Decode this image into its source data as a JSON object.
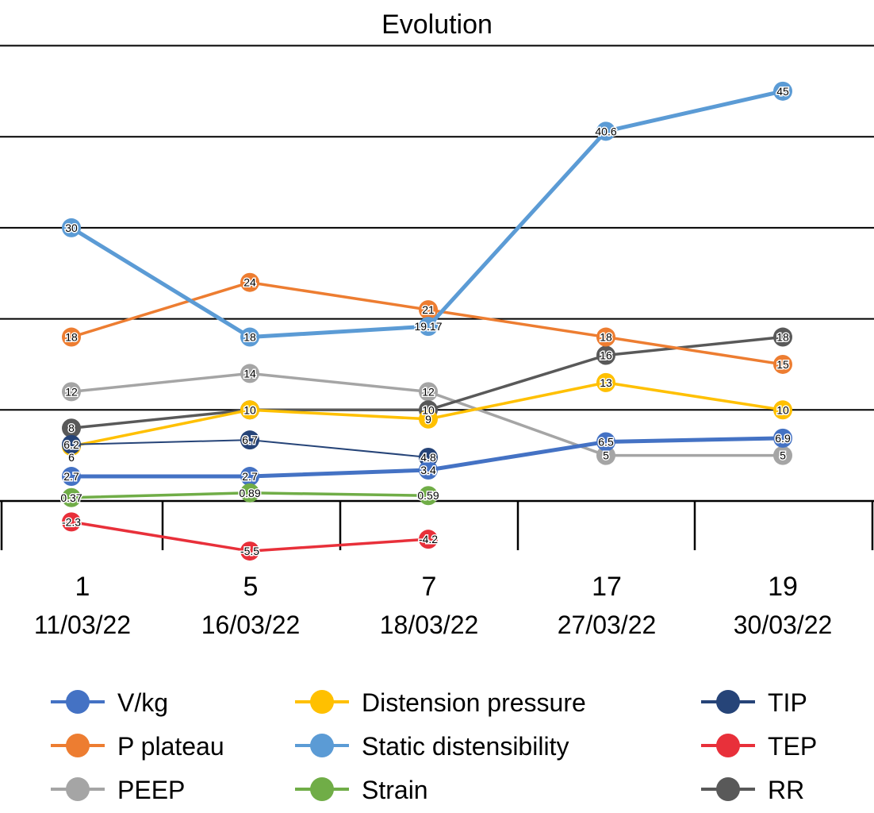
{
  "chart_data": {
    "type": "line",
    "title": "Evolution",
    "xlabel": "",
    "ylabel": "",
    "ylim": [
      -10,
      50
    ],
    "grid": true,
    "gridlines": [
      0,
      10,
      20,
      30,
      40,
      50
    ],
    "categories": [
      {
        "day": "1",
        "date": "11/03/22"
      },
      {
        "day": "5",
        "date": "16/03/22"
      },
      {
        "day": "7",
        "date": "18/03/22"
      },
      {
        "day": "17",
        "date": "27/03/22"
      },
      {
        "day": "19",
        "date": "30/03/22"
      }
    ],
    "legend_position": "bottom",
    "series": [
      {
        "name": "V/kg",
        "color": "#4472C4",
        "width": 5,
        "values": [
          2.7,
          2.7,
          3.4,
          6.5,
          6.9
        ],
        "labels": [
          "2.7",
          "2.7",
          "3.4",
          "6.5",
          "6.9"
        ]
      },
      {
        "name": "P plateau",
        "color": "#ED7D31",
        "width": 3.5,
        "values": [
          18,
          24,
          21,
          18,
          15
        ],
        "labels": [
          "18",
          "24",
          "21",
          "18",
          "15"
        ]
      },
      {
        "name": "PEEP",
        "color": "#A5A5A5",
        "width": 3.5,
        "values": [
          12,
          14,
          12,
          5,
          5
        ],
        "labels": [
          "12",
          "14",
          "12",
          "5",
          "5"
        ]
      },
      {
        "name": "Distension pressure",
        "color": "#FFC000",
        "width": 3.5,
        "values": [
          6,
          10,
          9,
          13,
          10
        ],
        "labels": [
          "6",
          "10",
          "9",
          "13",
          "10"
        ]
      },
      {
        "name": "Static distensibility",
        "color": "#5B9BD5",
        "width": 5,
        "values": [
          30,
          18,
          19.17,
          40.6,
          45
        ],
        "labels": [
          "30",
          "18",
          "19.17",
          "40.6",
          "45"
        ]
      },
      {
        "name": "Strain",
        "color": "#70AD47",
        "width": 3.5,
        "values": [
          0.37,
          0.89,
          0.59,
          null,
          null
        ],
        "labels": [
          "0.37",
          "0.89",
          "0.59",
          "",
          ""
        ]
      },
      {
        "name": "TIP",
        "color": "#264478",
        "width": 2,
        "values": [
          6.2,
          6.7,
          4.8,
          null,
          null
        ],
        "labels": [
          "6.2",
          "6.7",
          "4.8",
          "",
          ""
        ]
      },
      {
        "name": "TEP",
        "color": "#E8303A",
        "width": 3.5,
        "values": [
          -2.3,
          -5.5,
          -4.2,
          null,
          null
        ],
        "labels": [
          "-2.3",
          "-5.5",
          "-4.2",
          "",
          ""
        ]
      },
      {
        "name": "RR",
        "color": "#595959",
        "width": 3.5,
        "values": [
          8,
          10,
          10,
          16,
          18
        ],
        "labels": [
          "8",
          "10",
          "10",
          "16",
          "18"
        ]
      }
    ],
    "legend_layout": [
      [
        "V/kg",
        "Distension pressure",
        "TIP"
      ],
      [
        "P plateau",
        "Static distensibility",
        "TEP"
      ],
      [
        "PEEP",
        "Strain",
        "RR"
      ]
    ]
  }
}
